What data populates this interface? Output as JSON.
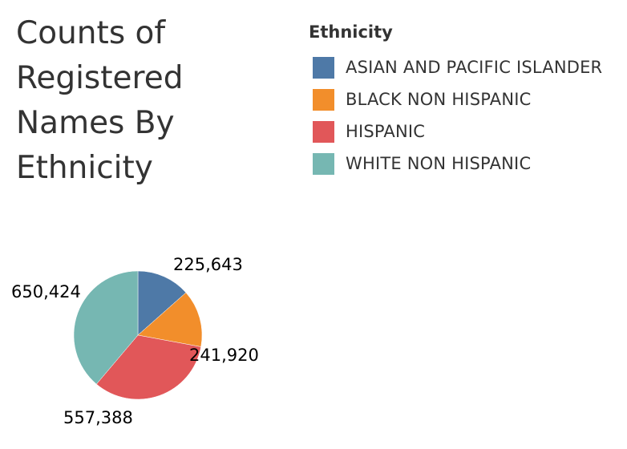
{
  "chart_data": {
    "type": "pie",
    "title": "Counts of Registered Names By Ethnicity",
    "legend_title": "Ethnicity",
    "legend_position": "top-right",
    "categories": [
      "ASIAN AND PACIFIC ISLANDER",
      "BLACK NON HISPANIC",
      "HISPANIC",
      "WHITE NON HISPANIC"
    ],
    "values": [
      225643,
      241920,
      557388,
      650424
    ],
    "value_labels": [
      "225,643",
      "241,920",
      "557,388",
      "650,424"
    ],
    "colors": [
      "#4e79a7",
      "#f28e2b",
      "#e15759",
      "#76b7b2"
    ]
  }
}
